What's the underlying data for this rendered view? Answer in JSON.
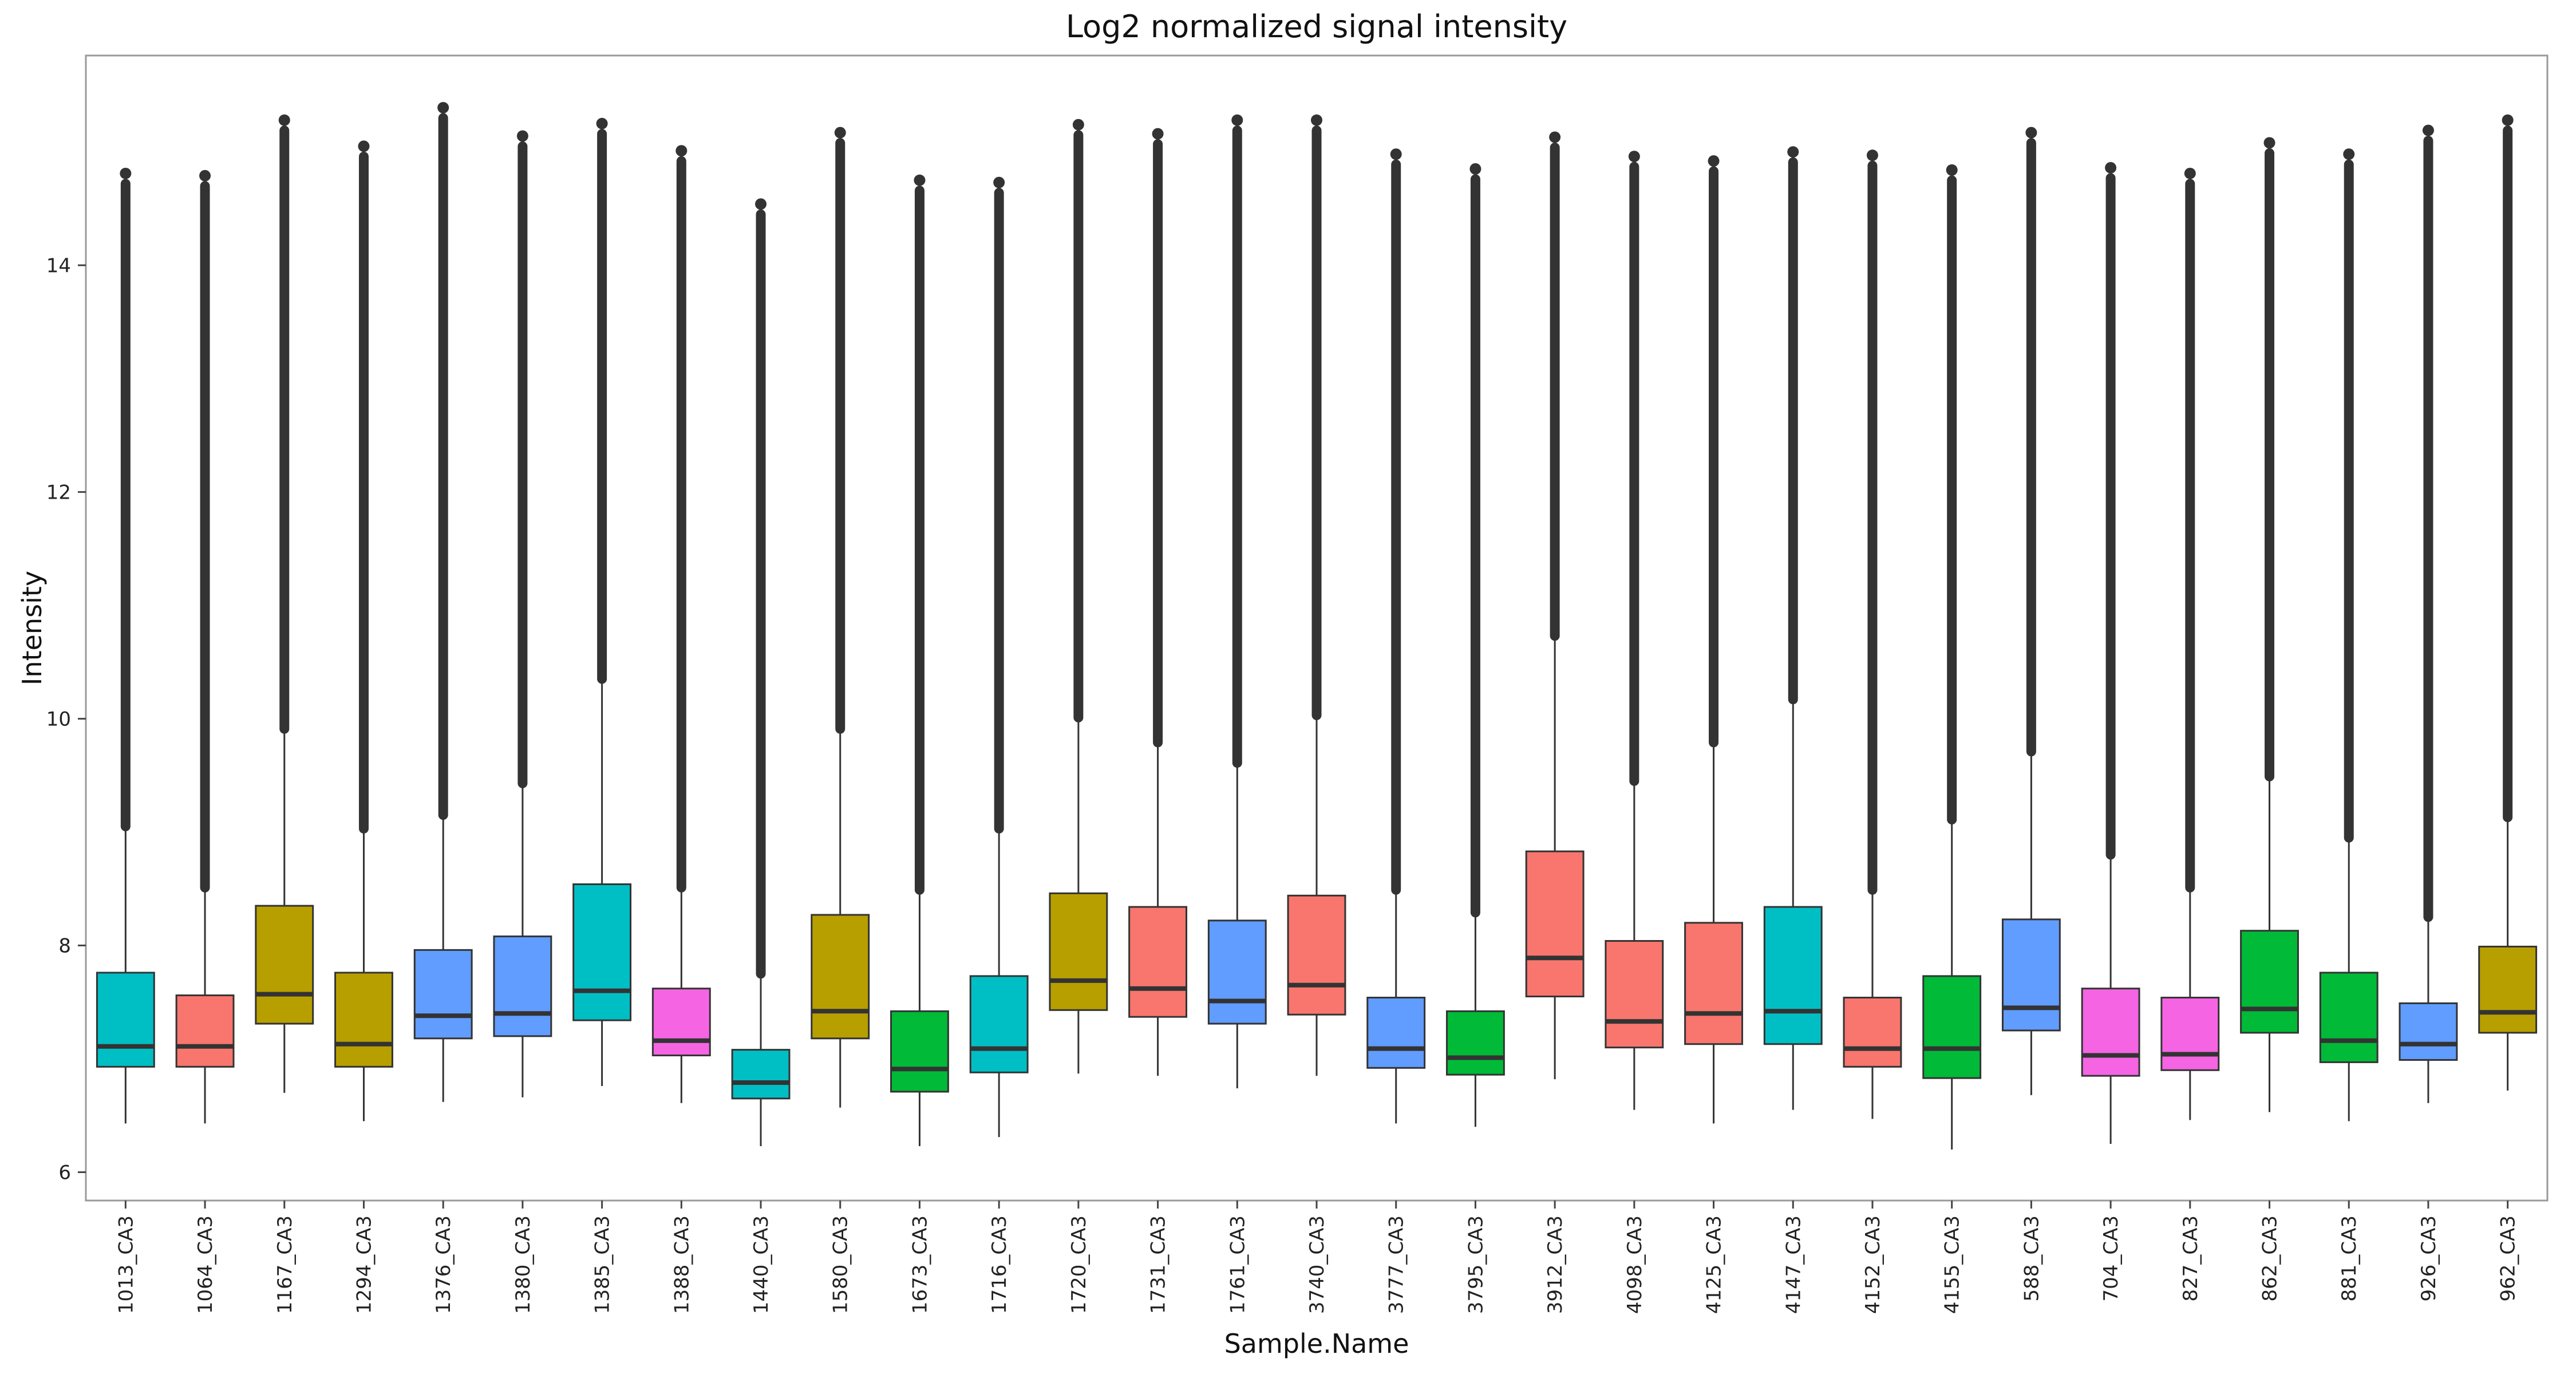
{
  "chart_data": {
    "type": "boxplot",
    "title": "Log2 normalized signal intensity",
    "xlabel": "Sample.Name",
    "ylabel": "Intensity",
    "ylim": [
      5.75,
      15.85
    ],
    "yticks": [
      6,
      8,
      10,
      12,
      14
    ],
    "grid": false,
    "legend": "none",
    "palette": {
      "olive": "#B79F00",
      "salmon": "#F8766D",
      "cyan": "#00BFC4",
      "blue": "#619CFF",
      "magenta": "#F564E3",
      "green": "#00BA38",
      "outline": "#333333"
    },
    "categories": [
      "1013_CA3",
      "1064_CA3",
      "1167_CA3",
      "1294_CA3",
      "1376_CA3",
      "1380_CA3",
      "1385_CA3",
      "1388_CA3",
      "1440_CA3",
      "1580_CA3",
      "1673_CA3",
      "1716_CA3",
      "1720_CA3",
      "1731_CA3",
      "1761_CA3",
      "3740_CA3",
      "3777_CA3",
      "3795_CA3",
      "3912_CA3",
      "4098_CA3",
      "4125_CA3",
      "4147_CA3",
      "4152_CA3",
      "4155_CA3",
      "588_CA3",
      "704_CA3",
      "827_CA3",
      "862_CA3",
      "881_CA3",
      "926_CA3",
      "962_CA3"
    ],
    "boxes": [
      {
        "min": 6.43,
        "q1": 6.93,
        "median": 7.11,
        "q3": 7.76,
        "whisker_high": 9.02,
        "max": 14.81,
        "color": "cyan"
      },
      {
        "min": 6.43,
        "q1": 6.93,
        "median": 7.11,
        "q3": 7.56,
        "whisker_high": 8.48,
        "max": 14.79,
        "color": "salmon"
      },
      {
        "min": 6.7,
        "q1": 7.31,
        "median": 7.57,
        "q3": 8.35,
        "whisker_high": 9.88,
        "max": 15.28,
        "color": "olive"
      },
      {
        "min": 6.45,
        "q1": 6.93,
        "median": 7.13,
        "q3": 7.76,
        "whisker_high": 9.0,
        "max": 15.05,
        "color": "olive"
      },
      {
        "min": 6.62,
        "q1": 7.18,
        "median": 7.38,
        "q3": 7.96,
        "whisker_high": 9.12,
        "max": 15.39,
        "color": "blue"
      },
      {
        "min": 6.66,
        "q1": 7.2,
        "median": 7.4,
        "q3": 8.08,
        "whisker_high": 9.4,
        "max": 15.14,
        "color": "blue"
      },
      {
        "min": 6.76,
        "q1": 7.34,
        "median": 7.6,
        "q3": 8.54,
        "whisker_high": 10.32,
        "max": 15.25,
        "color": "cyan"
      },
      {
        "min": 6.61,
        "q1": 7.03,
        "median": 7.16,
        "q3": 7.62,
        "whisker_high": 8.48,
        "max": 15.01,
        "color": "magenta"
      },
      {
        "min": 6.23,
        "q1": 6.65,
        "median": 6.79,
        "q3": 7.08,
        "whisker_high": 7.72,
        "max": 14.54,
        "color": "cyan"
      },
      {
        "min": 6.57,
        "q1": 7.18,
        "median": 7.42,
        "q3": 8.27,
        "whisker_high": 9.88,
        "max": 15.17,
        "color": "olive"
      },
      {
        "min": 6.23,
        "q1": 6.71,
        "median": 6.91,
        "q3": 7.42,
        "whisker_high": 8.46,
        "max": 14.75,
        "color": "green"
      },
      {
        "min": 6.31,
        "q1": 6.88,
        "median": 7.09,
        "q3": 7.73,
        "whisker_high": 9.0,
        "max": 14.73,
        "color": "cyan"
      },
      {
        "min": 6.87,
        "q1": 7.43,
        "median": 7.69,
        "q3": 8.46,
        "whisker_high": 9.98,
        "max": 15.24,
        "color": "olive"
      },
      {
        "min": 6.85,
        "q1": 7.37,
        "median": 7.62,
        "q3": 8.34,
        "whisker_high": 9.76,
        "max": 15.16,
        "color": "salmon"
      },
      {
        "min": 6.74,
        "q1": 7.31,
        "median": 7.51,
        "q3": 8.22,
        "whisker_high": 9.58,
        "max": 15.28,
        "color": "blue"
      },
      {
        "min": 6.85,
        "q1": 7.39,
        "median": 7.65,
        "q3": 8.44,
        "whisker_high": 10.0,
        "max": 15.28,
        "color": "salmon"
      },
      {
        "min": 6.43,
        "q1": 6.92,
        "median": 7.09,
        "q3": 7.54,
        "whisker_high": 8.46,
        "max": 14.98,
        "color": "blue"
      },
      {
        "min": 6.4,
        "q1": 6.86,
        "median": 7.01,
        "q3": 7.42,
        "whisker_high": 8.26,
        "max": 14.85,
        "color": "green"
      },
      {
        "min": 6.82,
        "q1": 7.55,
        "median": 7.89,
        "q3": 8.83,
        "whisker_high": 10.7,
        "max": 15.13,
        "color": "salmon"
      },
      {
        "min": 6.55,
        "q1": 7.1,
        "median": 7.33,
        "q3": 8.04,
        "whisker_high": 9.42,
        "max": 14.96,
        "color": "salmon"
      },
      {
        "min": 6.43,
        "q1": 7.13,
        "median": 7.4,
        "q3": 8.2,
        "whisker_high": 9.76,
        "max": 14.92,
        "color": "salmon"
      },
      {
        "min": 6.55,
        "q1": 7.13,
        "median": 7.42,
        "q3": 8.34,
        "whisker_high": 10.14,
        "max": 15.0,
        "color": "cyan"
      },
      {
        "min": 6.47,
        "q1": 6.93,
        "median": 7.09,
        "q3": 7.54,
        "whisker_high": 8.46,
        "max": 14.97,
        "color": "salmon"
      },
      {
        "min": 6.2,
        "q1": 6.83,
        "median": 7.09,
        "q3": 7.73,
        "whisker_high": 9.08,
        "max": 14.84,
        "color": "green"
      },
      {
        "min": 6.68,
        "q1": 7.25,
        "median": 7.45,
        "q3": 8.23,
        "whisker_high": 9.68,
        "max": 15.17,
        "color": "blue"
      },
      {
        "min": 6.25,
        "q1": 6.85,
        "median": 7.03,
        "q3": 7.62,
        "whisker_high": 8.77,
        "max": 14.86,
        "color": "magenta"
      },
      {
        "min": 6.46,
        "q1": 6.9,
        "median": 7.04,
        "q3": 7.54,
        "whisker_high": 8.48,
        "max": 14.81,
        "color": "magenta"
      },
      {
        "min": 6.53,
        "q1": 7.23,
        "median": 7.44,
        "q3": 8.13,
        "whisker_high": 9.46,
        "max": 15.08,
        "color": "green"
      },
      {
        "min": 6.45,
        "q1": 6.97,
        "median": 7.16,
        "q3": 7.76,
        "whisker_high": 8.92,
        "max": 14.98,
        "color": "green"
      },
      {
        "min": 6.61,
        "q1": 6.99,
        "median": 7.13,
        "q3": 7.49,
        "whisker_high": 8.22,
        "max": 15.19,
        "color": "blue"
      },
      {
        "min": 6.72,
        "q1": 7.23,
        "median": 7.41,
        "q3": 7.99,
        "whisker_high": 9.1,
        "max": 15.28,
        "color": "olive"
      }
    ]
  }
}
